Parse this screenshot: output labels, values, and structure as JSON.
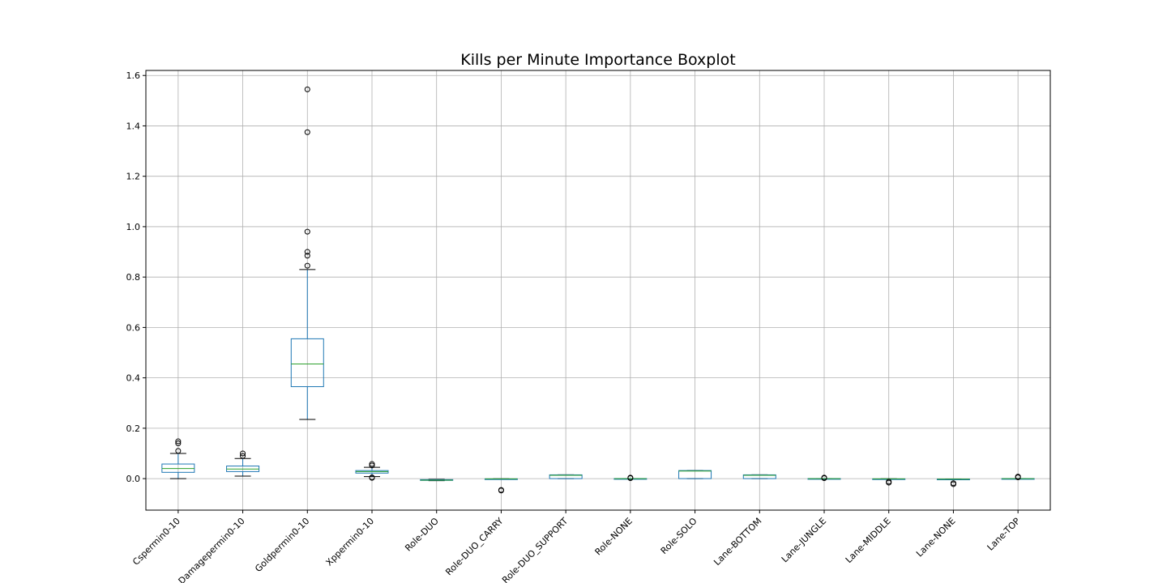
{
  "chart_data": {
    "type": "boxplot",
    "title": "Kills per Minute Importance Boxplot",
    "xlabel": "",
    "ylabel": "",
    "ylim": [
      -0.125,
      1.62
    ],
    "yticks": [
      0.0,
      0.2,
      0.4,
      0.6,
      0.8,
      1.0,
      1.2,
      1.4,
      1.6
    ],
    "ytick_labels": [
      "0.0",
      "0.2",
      "0.4",
      "0.6",
      "0.8",
      "1.0",
      "1.2",
      "1.4",
      "1.6"
    ],
    "grid": true,
    "colors": {
      "box": "#1f77b4",
      "median": "#2ca02c",
      "whisker": "#1f77b4",
      "cap": "#000000",
      "flier": "#000000",
      "grid": "#b0b0b0"
    },
    "categories": [
      "Cspermin0-10",
      "Damagepermin0-10",
      "Goldpermin0-10",
      "Xppermin0-10",
      "Role-DUO",
      "Role-DUO_CARRY",
      "Role-DUO_SUPPORT",
      "Role-NONE",
      "Role-SOLO",
      "Lane-BOTTOM",
      "Lane-JUNGLE",
      "Lane-MIDDLE",
      "Lane-NONE",
      "Lane-TOP"
    ],
    "boxes": [
      {
        "whislo": 0.0,
        "q1": 0.025,
        "med": 0.04,
        "q3": 0.058,
        "whishi": 0.1,
        "fliers": [
          0.11,
          0.14,
          0.148
        ]
      },
      {
        "whislo": 0.01,
        "q1": 0.028,
        "med": 0.038,
        "q3": 0.05,
        "whishi": 0.08,
        "fliers": [
          0.09,
          0.1
        ]
      },
      {
        "whislo": 0.235,
        "q1": 0.365,
        "med": 0.455,
        "q3": 0.555,
        "whishi": 0.83,
        "fliers": [
          0.845,
          0.885,
          0.9,
          0.98,
          1.375,
          1.545
        ]
      },
      {
        "whislo": 0.008,
        "q1": 0.022,
        "med": 0.028,
        "q3": 0.032,
        "whishi": 0.045,
        "fliers": [
          0.003,
          0.005,
          0.052,
          0.058
        ]
      },
      {
        "whislo": -0.008,
        "q1": -0.007,
        "med": -0.006,
        "q3": -0.004,
        "whishi": -0.003,
        "fliers": []
      },
      {
        "whislo": -0.001,
        "q1": -0.001,
        "med": -0.001,
        "q3": -0.001,
        "whishi": -0.001,
        "fliers": [
          -0.045,
          -0.047
        ]
      },
      {
        "whislo": 0.0,
        "q1": 0.0,
        "med": 0.013,
        "q3": 0.015,
        "whishi": 0.015,
        "fliers": []
      },
      {
        "whislo": 0.0,
        "q1": 0.0,
        "med": 0.0,
        "q3": 0.0,
        "whishi": 0.0,
        "fliers": [
          0.002,
          0.004
        ]
      },
      {
        "whislo": 0.0,
        "q1": 0.0,
        "med": 0.03,
        "q3": 0.032,
        "whishi": 0.032,
        "fliers": []
      },
      {
        "whislo": 0.0,
        "q1": 0.0,
        "med": 0.013,
        "q3": 0.015,
        "whishi": 0.015,
        "fliers": []
      },
      {
        "whislo": 0.0,
        "q1": 0.0,
        "med": 0.0,
        "q3": 0.0,
        "whishi": 0.0,
        "fliers": [
          0.002,
          0.004
        ]
      },
      {
        "whislo": -0.001,
        "q1": -0.001,
        "med": -0.001,
        "q3": -0.001,
        "whishi": -0.001,
        "fliers": [
          -0.012,
          -0.016
        ]
      },
      {
        "whislo": -0.002,
        "q1": -0.002,
        "med": -0.002,
        "q3": -0.002,
        "whishi": -0.002,
        "fliers": [
          -0.018,
          -0.022
        ]
      },
      {
        "whislo": 0.0,
        "q1": 0.0,
        "med": 0.0,
        "q3": 0.0,
        "whishi": 0.0,
        "fliers": [
          0.005,
          0.008
        ]
      }
    ]
  }
}
